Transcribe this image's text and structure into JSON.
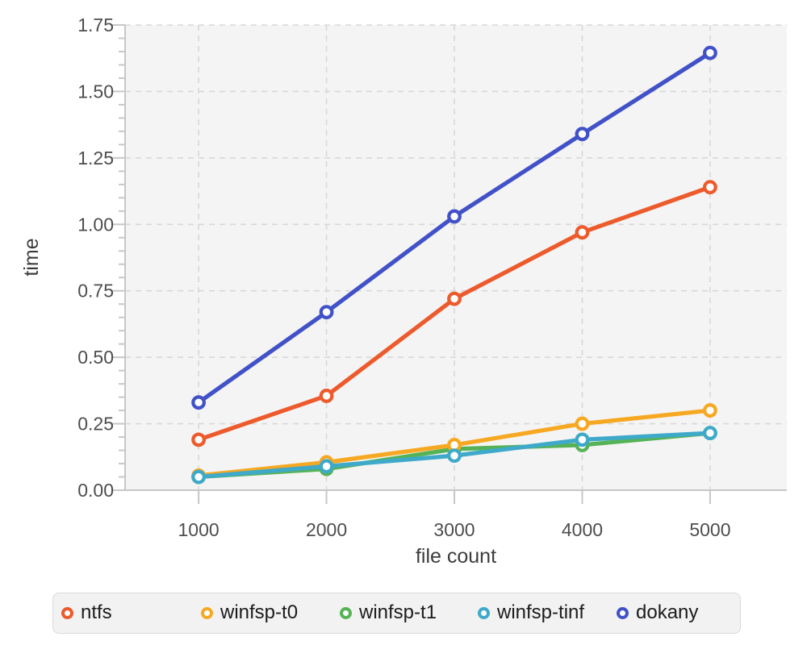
{
  "chart_data": {
    "type": "line",
    "title": "",
    "xlabel": "file count",
    "ylabel": "time",
    "x": [
      1000,
      2000,
      3000,
      4000,
      5000
    ],
    "x_tick_labels": [
      "1000",
      "2000",
      "3000",
      "4000",
      "5000"
    ],
    "y_tick_labels": [
      "0.00",
      "0.25",
      "0.50",
      "0.75",
      "1.00",
      "1.25",
      "1.50",
      "1.75"
    ],
    "y_minor_step": 0.05,
    "xlim": [
      425,
      5600
    ],
    "ylim": [
      0,
      1.75
    ],
    "grid": "dashed",
    "legend_position": "bottom",
    "marker": "open-circle",
    "series": [
      {
        "name": "ntfs",
        "color": "#ED5A2B",
        "values": [
          0.19,
          0.355,
          0.72,
          0.97,
          1.14
        ]
      },
      {
        "name": "winfsp-t0",
        "color": "#F7A822",
        "values": [
          0.055,
          0.105,
          0.17,
          0.25,
          0.3
        ]
      },
      {
        "name": "winfsp-t1",
        "color": "#55B356",
        "values": [
          0.05,
          0.08,
          0.155,
          0.17,
          0.215
        ]
      },
      {
        "name": "winfsp-tinf",
        "color": "#3FA9C9",
        "values": [
          0.05,
          0.09,
          0.13,
          0.19,
          0.215
        ]
      },
      {
        "name": "dokany",
        "color": "#4151C8",
        "values": [
          0.33,
          0.67,
          1.03,
          1.34,
          1.645
        ]
      }
    ],
    "draw_order": [
      "winfsp-t1",
      "winfsp-t0",
      "winfsp-tinf",
      "ntfs",
      "dokany"
    ]
  },
  "theme": {
    "page_bg": "#ffffff",
    "plot_bg": "#f4f4f4",
    "grid_color": "#d8d8d8",
    "axis_color": "#c7c7c7",
    "tick_label_color": "#4d4d4d",
    "axis_title_color": "#3c3c3c",
    "legend_bg": "#f2f2f2",
    "legend_border": "#d9d9d9",
    "legend_text": "#1c1c1e"
  }
}
